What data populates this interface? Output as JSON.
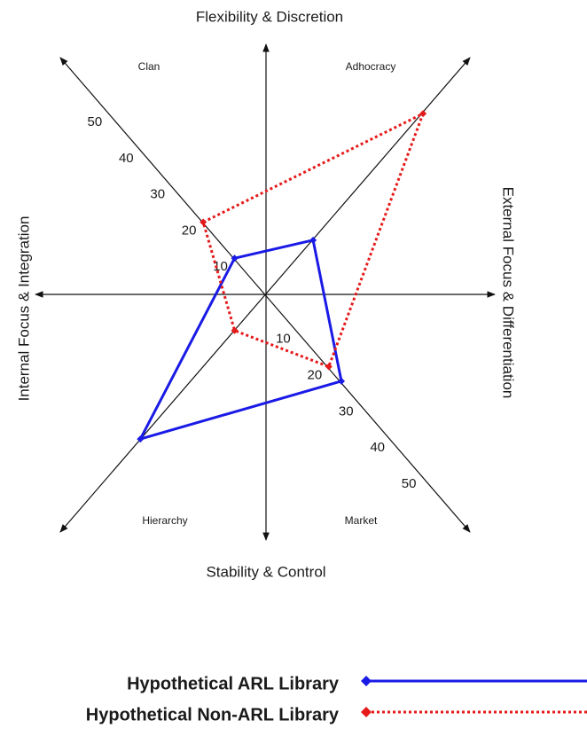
{
  "chart_data": {
    "type": "radar",
    "axis_titles": {
      "top": "Flexibility & Discretion",
      "bottom": "Stability & Control",
      "left": "Internal Focus & Integration",
      "right": "External Focus & Differentiation"
    },
    "categories": [
      "Clan",
      "Adhocracy",
      "Market",
      "Hierarchy"
    ],
    "rlim": [
      0,
      50
    ],
    "rticks": [
      10,
      20,
      30,
      40,
      50
    ],
    "series": [
      {
        "name": "Hypothetical ARL Library",
        "color": "#1a1ae6",
        "line_style": "solid",
        "values": [
          10,
          15,
          24,
          40
        ]
      },
      {
        "name": "Hypothetical Non-ARL Library",
        "color": "#e61a1a",
        "line_style": "dotted",
        "values": [
          20,
          50,
          20,
          10
        ]
      }
    ]
  }
}
